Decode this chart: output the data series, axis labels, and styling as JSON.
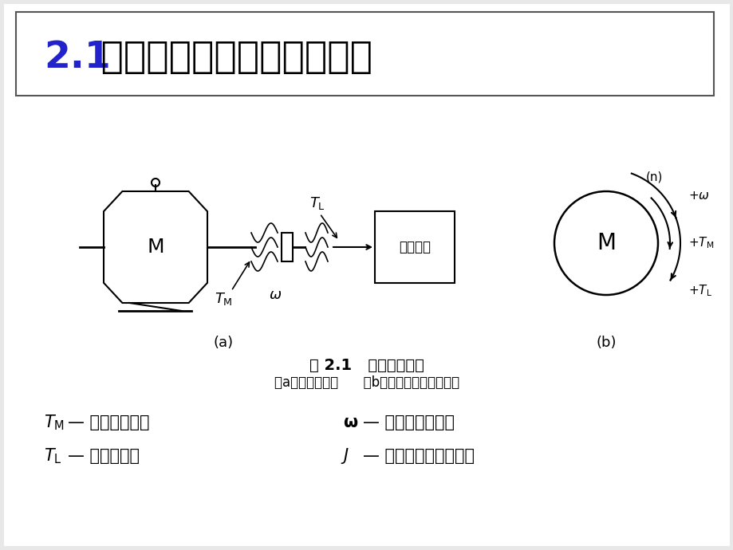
{
  "title_number": "2.1",
  "title_text": " 机电传动系统的运动方程式",
  "title_number_color": "#2222cc",
  "title_text_color": "#000000",
  "bg_color": "#f0f0f0",
  "slide_bg": "#e8e8e8",
  "content_bg": "#ffffff",
  "fig_caption": "图 2.1   单轴拖动系统",
  "fig_sub": "（a）传动系统图      （b）转矩、转速的正方向",
  "legend_line1_left": "T",
  "legend_line1_right": "ω — 轴系的角速度；",
  "legend_line2_left": "T",
  "legend_line2_right": "J  — 整个轴系的转动惯量"
}
